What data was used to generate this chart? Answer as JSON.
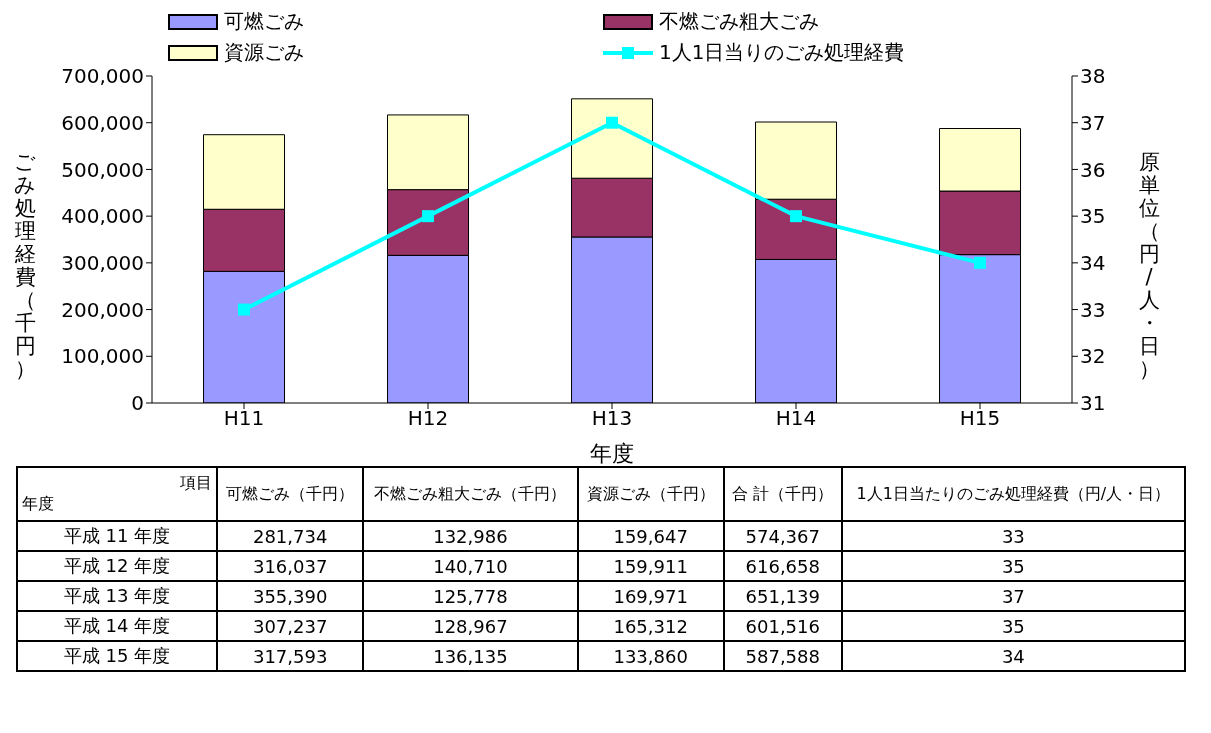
{
  "chart_data": [
    {
      "type": "bar",
      "stacked": true,
      "xlabel": "年度",
      "ylabel": "ごみ処理経費（千円）",
      "y2label": "原単位（円/人・日）",
      "categories": [
        "H11",
        "H12",
        "H13",
        "H14",
        "H15"
      ],
      "series": [
        {
          "name": "可燃ごみ",
          "color": "#9999ff",
          "values": [
            281734,
            316037,
            355390,
            307237,
            317593
          ]
        },
        {
          "name": "不燃ごみ粗大ごみ",
          "color": "#993366",
          "values": [
            132986,
            140710,
            125778,
            128967,
            136135
          ]
        },
        {
          "name": "資源ごみ",
          "color": "#ffffcc",
          "values": [
            159647,
            159911,
            169971,
            165312,
            133860
          ]
        },
        {
          "name": "1人1日当りのごみ処理経費",
          "type": "line",
          "axis": "y2",
          "color": "#00ffff",
          "values": [
            33,
            35,
            37,
            35,
            34
          ]
        }
      ],
      "ylim": [
        0,
        700000
      ],
      "yticks": [
        0,
        {
          "value": 100000,
          "label": "100,000"
        },
        {
          "value": 200000,
          "label": "200,000"
        },
        {
          "value": 300000,
          "label": "300,000"
        },
        {
          "value": 400000,
          "label": "400,000"
        },
        {
          "value": 500000,
          "label": "500,000"
        },
        {
          "value": 600000,
          "label": "600,000"
        },
        {
          "value": 700000,
          "label": "700,000"
        }
      ],
      "y2lim": [
        31,
        38
      ],
      "y2ticks": [
        31,
        32,
        33,
        34,
        35,
        36,
        37,
        38
      ],
      "marker": "square",
      "legend": "top"
    },
    {
      "type": "other",
      "annotations": [
        "項目",
        "年度",
        "可燃ごみ（千円）",
        "不燃ごみ粗大ごみ（千円）",
        "資源ごみ（千円）",
        "合 計（千円）",
        "1人1日当たりのごみ処理経費（円/人・日）",
        "平成 11 年度",
        "281,734",
        "132,986",
        "159,647",
        "574,367",
        "33",
        "平成 12 年度",
        "316,037",
        "140,710",
        "159,911",
        "616,658",
        "35",
        "平成 13 年度",
        "355,390",
        "125,778",
        "169,971",
        "651,139",
        "37",
        "平成 14 年度",
        "307,237",
        "128,967",
        "165,312",
        "601,516",
        "35",
        "平成 15 年度",
        "317,593",
        "136,135",
        "133,860",
        "587,588",
        "34"
      ]
    }
  ]
}
